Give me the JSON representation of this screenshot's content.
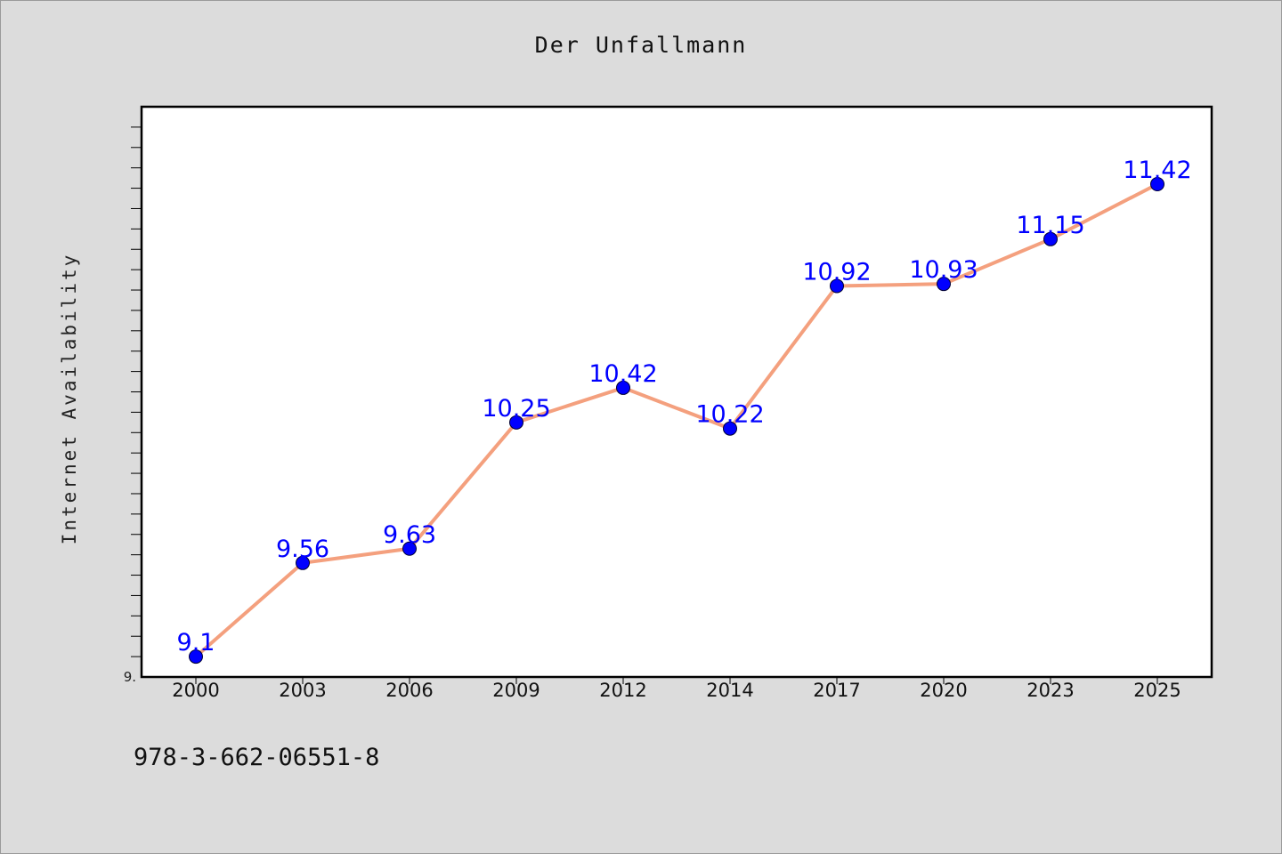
{
  "colors": {
    "background": "#dcdcdc",
    "plot_background": "#ffffff",
    "line": "#f4a07e",
    "marker": "#0000ff",
    "data_label": "#0000ff",
    "axis": "#000000"
  },
  "footer": {
    "code": "978-3-662-06551-8"
  },
  "chart_data": {
    "type": "line",
    "title": "Der Unfallmann",
    "xlabel": "",
    "ylabel": "Internet Availability",
    "categories": [
      "2000",
      "2003",
      "2006",
      "2009",
      "2012",
      "2014",
      "2017",
      "2020",
      "2023",
      "2025"
    ],
    "series": [
      {
        "values": [
          9.1,
          9.56,
          9.63,
          10.25,
          10.42,
          10.22,
          10.92,
          10.93,
          11.15,
          11.42
        ]
      }
    ],
    "data_labels": [
      "9.1",
      "9.56",
      "9.63",
      "10.25",
      "10.42",
      "10.22",
      "10.92",
      "10.93",
      "11.15",
      "11.42"
    ],
    "y_tick_labels": [
      "9."
    ],
    "ylim": [
      9.0,
      11.8
    ],
    "grid": false,
    "legend": "none"
  }
}
